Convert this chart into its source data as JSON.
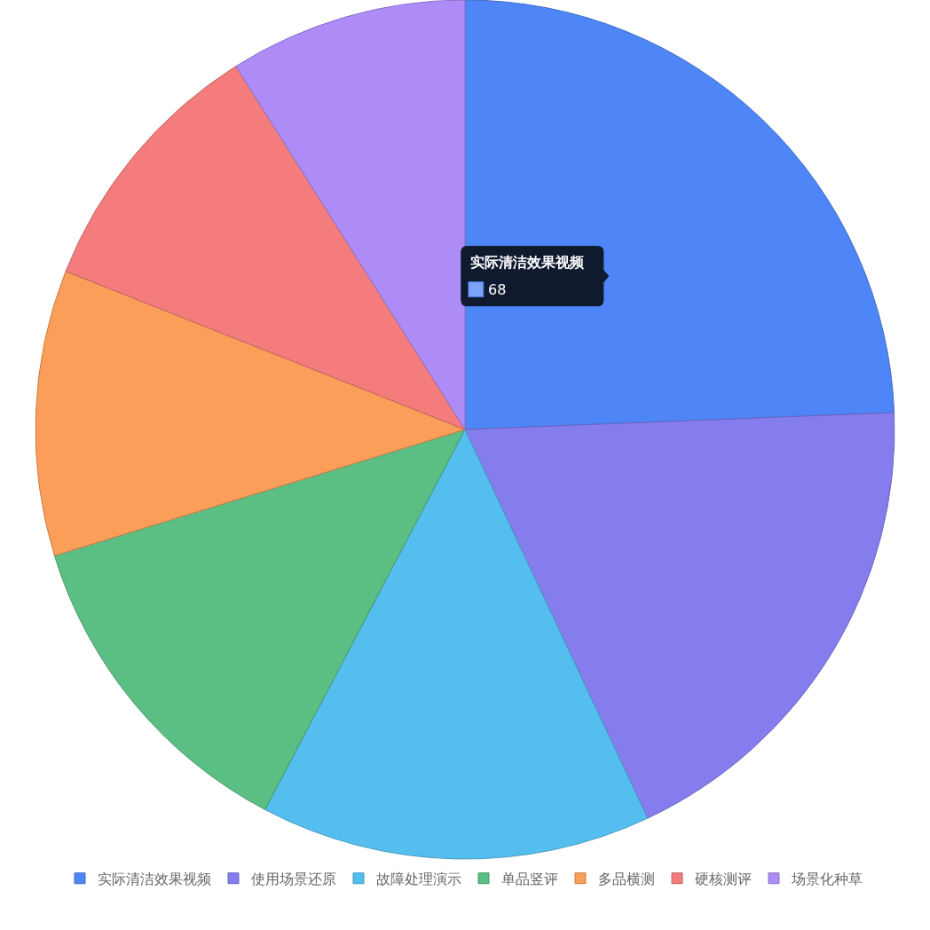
{
  "chart_data": {
    "type": "pie",
    "categories": [
      "实际清洁效果视频",
      "使用场景还原",
      "故障处理演示",
      "单品竖评",
      "多品横测",
      "硬核测评",
      "场景化种草"
    ],
    "values": [
      68,
      52,
      41,
      35,
      30,
      28,
      25
    ],
    "colors": [
      "#4f86f7",
      "#857ded",
      "#54bfef",
      "#5bbe83",
      "#fb9e5a",
      "#f47c7c",
      "#ad8cf8"
    ],
    "value_labels": [
      "68",
      null,
      null,
      null,
      null,
      null,
      null
    ],
    "legend": "bottom"
  }
}
